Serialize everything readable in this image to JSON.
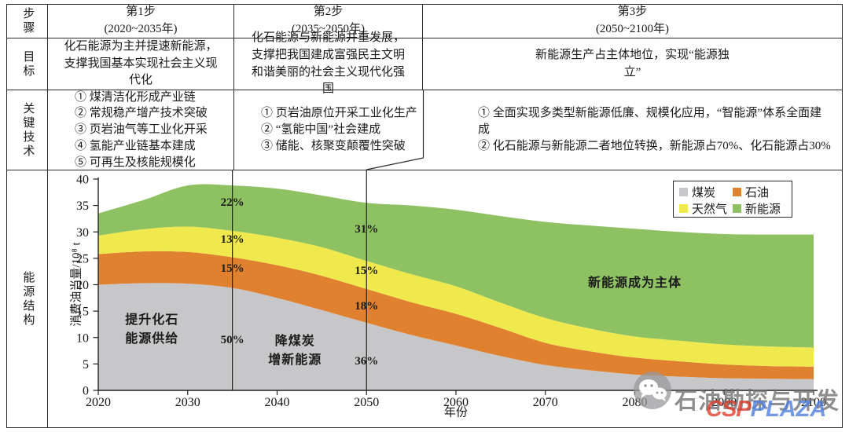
{
  "table": {
    "row_headers": [
      "步骤",
      "目标",
      "关键技术"
    ],
    "energy_header": "能源结构",
    "steps": [
      {
        "name": "第1步",
        "range": "(2020~2035年)"
      },
      {
        "name": "第2步",
        "range": "(2035~2050年)"
      },
      {
        "name": "第3步",
        "range": "(2050~2100年)"
      }
    ],
    "goals": [
      "化石能源为主并提速新能源，支撑我国基本实现社会主义现代化",
      "化石能源与新能源并重发展，支撑把我国建成富强民主文明和谐美丽的社会主义现代化强国",
      "新能源生产占主体地位，实现“能源独立”"
    ],
    "technologies": [
      [
        "① 煤清洁化形成产业链",
        "② 常规稳产增产技术突破",
        "③ 页岩油气等工业化开采",
        "④ 氢能产业链基本建成",
        "⑤ 可再生及核能规模化"
      ],
      [
        "① 页岩油原位开采工业化生产",
        "② “氢能中国”社会建成",
        "③ 储能、核聚变颠覆性突破"
      ],
      [
        "① 全面实现多类型新能源低廉、规模化应用，“智能源”体系全面建成",
        "② 化石能源与新能源二者地位转换，新能源占70%、化石能源占30%"
      ]
    ]
  },
  "chart_data": {
    "type": "area",
    "stacked": true,
    "xlabel": "年份",
    "ylabel": "消费油当量/10⁸ t",
    "xlim": [
      2020,
      2100
    ],
    "ylim": [
      0,
      40
    ],
    "x_ticks": [
      2020,
      2030,
      2040,
      2050,
      2060,
      2070,
      2080,
      2090,
      2100
    ],
    "y_ticks": [
      0,
      5,
      10,
      15,
      20,
      25,
      30,
      35,
      40
    ],
    "years": [
      2020,
      2025,
      2030,
      2035,
      2040,
      2045,
      2050,
      2055,
      2060,
      2065,
      2070,
      2075,
      2080,
      2085,
      2090,
      2095,
      2100
    ],
    "series": [
      {
        "key": "coal",
        "name": "煤炭",
        "color": "#c7c7c9",
        "values": [
          20.0,
          20.3,
          20.2,
          19.4,
          17.5,
          15.2,
          12.8,
          10.5,
          8.5,
          6.5,
          4.8,
          3.8,
          3.0,
          2.6,
          2.3,
          2.2,
          2.1
        ]
      },
      {
        "key": "oil",
        "name": "石油",
        "color": "#e0812f",
        "values": [
          5.8,
          6.0,
          6.0,
          5.8,
          6.2,
          6.5,
          6.4,
          6.2,
          6.0,
          5.3,
          4.2,
          3.6,
          3.2,
          2.9,
          2.6,
          2.4,
          2.4
        ]
      },
      {
        "key": "gas",
        "name": "天然气",
        "color": "#f0e94d",
        "values": [
          3.5,
          4.2,
          4.8,
          5.0,
          5.2,
          5.4,
          5.3,
          5.3,
          5.2,
          4.8,
          4.7,
          4.3,
          4.0,
          3.9,
          3.8,
          3.7,
          3.6
        ]
      },
      {
        "key": "new",
        "name": "新能源",
        "color": "#8ec161",
        "values": [
          4.2,
          5.5,
          7.8,
          8.6,
          9.3,
          9.8,
          11.0,
          13.0,
          14.5,
          16.4,
          18.2,
          19.5,
          20.4,
          20.6,
          20.9,
          21.2,
          21.4
        ]
      }
    ],
    "guide_years": [
      2035,
      2050
    ],
    "annotations": [
      {
        "text": "22%",
        "year": 2035,
        "value": 35.5
      },
      {
        "text": "13%",
        "year": 2035,
        "value": 28.6
      },
      {
        "text": "15%",
        "year": 2035,
        "value": 23.0
      },
      {
        "text": "50%",
        "year": 2035,
        "value": 9.5
      },
      {
        "text": "31%",
        "year": 2050,
        "value": 30.5
      },
      {
        "text": "15%",
        "year": 2050,
        "value": 22.6
      },
      {
        "text": "18%",
        "year": 2050,
        "value": 15.9
      },
      {
        "text": "36%",
        "year": 2050,
        "value": 5.5
      },
      {
        "text": "提升化石\n能源供给",
        "year": 2026,
        "value": 11.5,
        "big": true
      },
      {
        "text": "降煤炭\n增新能源",
        "year": 2042,
        "value": 7.5,
        "big": true
      },
      {
        "text": "新能源成为主体",
        "year": 2080,
        "value": 20.2,
        "big": true
      }
    ]
  },
  "watermark": {
    "icon": "wechat-icon",
    "text": "石油勘探与开发",
    "logo_red": "CSP",
    "logo_blue": "PLAZA"
  }
}
